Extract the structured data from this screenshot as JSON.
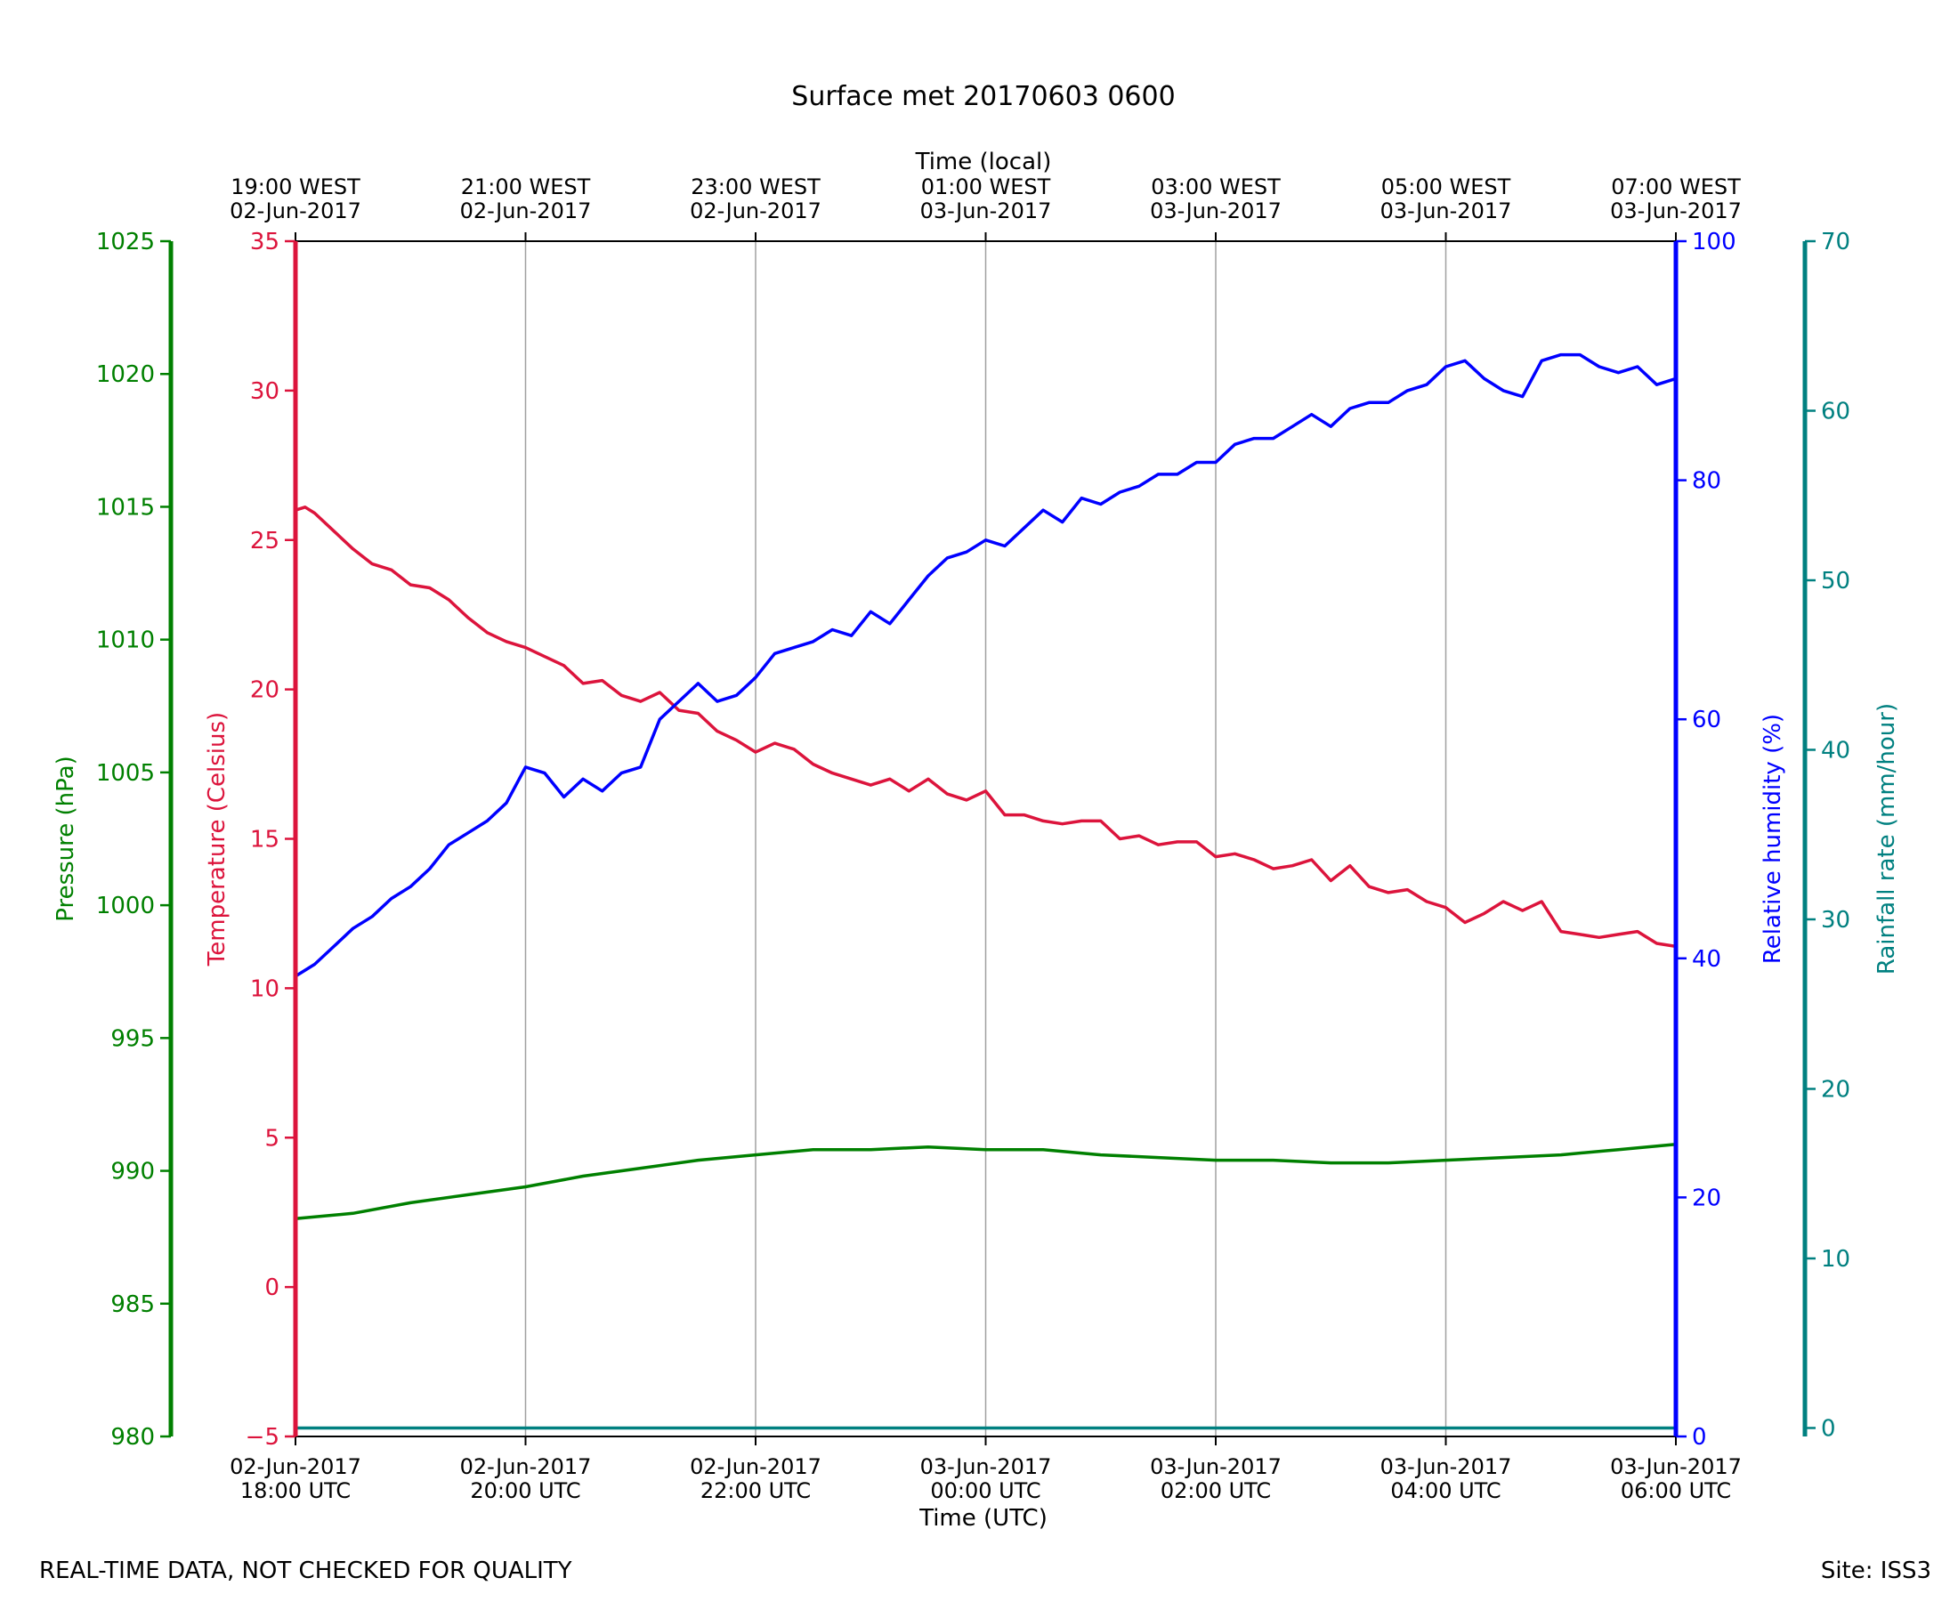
{
  "title": "Surface met 20170603 0600",
  "footer_left": "REAL-TIME DATA, NOT CHECKED FOR QUALITY",
  "footer_right": "Site: ISS3",
  "colors": {
    "temperature": "#dc143c",
    "humidity": "#0000ff",
    "pressure": "#008000",
    "rainfall": "#008080",
    "grid": "#a0a0a0",
    "axis": "#000000"
  },
  "chart_data": {
    "type": "line",
    "grid": "vertical",
    "xlabel": "Time (UTC)",
    "x2label": "Time (local)",
    "xlim": [
      "2017-06-02 18:00",
      "2017-06-03 06:00"
    ],
    "x_ticks_utc": [
      {
        "line1": "02-Jun-2017",
        "line2": "18:00 UTC"
      },
      {
        "line1": "02-Jun-2017",
        "line2": "20:00 UTC"
      },
      {
        "line1": "02-Jun-2017",
        "line2": "22:00 UTC"
      },
      {
        "line1": "03-Jun-2017",
        "line2": "00:00 UTC"
      },
      {
        "line1": "03-Jun-2017",
        "line2": "02:00 UTC"
      },
      {
        "line1": "03-Jun-2017",
        "line2": "04:00 UTC"
      },
      {
        "line1": "03-Jun-2017",
        "line2": "06:00 UTC"
      }
    ],
    "x_ticks_local": [
      {
        "line1": "19:00 WEST",
        "line2": "02-Jun-2017"
      },
      {
        "line1": "21:00 WEST",
        "line2": "02-Jun-2017"
      },
      {
        "line1": "23:00 WEST",
        "line2": "02-Jun-2017"
      },
      {
        "line1": "01:00 WEST",
        "line2": "03-Jun-2017"
      },
      {
        "line1": "03:00 WEST",
        "line2": "03-Jun-2017"
      },
      {
        "line1": "05:00 WEST",
        "line2": "03-Jun-2017"
      },
      {
        "line1": "07:00 WEST",
        "line2": "03-Jun-2017"
      }
    ],
    "axes": {
      "pressure": {
        "label": "Pressure (hPa)",
        "lim": [
          980,
          1025
        ],
        "ticks": [
          "980",
          "985",
          "990",
          "995",
          "1000",
          "1005",
          "1010",
          "1015",
          "1020",
          "1025"
        ]
      },
      "temperature": {
        "label": "Temperature (Celsius)",
        "lim": [
          -5,
          35
        ],
        "ticks": [
          "−5",
          "0",
          "5",
          "10",
          "15",
          "20",
          "25",
          "30",
          "35"
        ]
      },
      "humidity": {
        "label": "Relative humidity (%)",
        "lim": [
          0,
          100
        ],
        "ticks": [
          "0",
          "20",
          "40",
          "60",
          "80",
          "100"
        ]
      },
      "rainfall": {
        "label": "Rainfall rate (mm/hour)",
        "lim": [
          -0.5,
          70
        ],
        "ticks": [
          "0",
          "10",
          "20",
          "30",
          "40",
          "50",
          "60",
          "70"
        ]
      }
    },
    "series": [
      {
        "name": "Temperature (Celsius)",
        "axis": "temperature",
        "x": [
          "2017-06-02 18:00",
          "2017-06-02 18:05",
          "2017-06-02 18:10",
          "2017-06-02 18:20",
          "2017-06-02 18:30",
          "2017-06-02 18:40",
          "2017-06-02 18:50",
          "2017-06-02 19:00",
          "2017-06-02 19:10",
          "2017-06-02 19:20",
          "2017-06-02 19:30",
          "2017-06-02 19:40",
          "2017-06-02 19:50",
          "2017-06-02 20:00",
          "2017-06-02 20:10",
          "2017-06-02 20:20",
          "2017-06-02 20:30",
          "2017-06-02 20:40",
          "2017-06-02 20:50",
          "2017-06-02 21:00",
          "2017-06-02 21:10",
          "2017-06-02 21:20",
          "2017-06-02 21:30",
          "2017-06-02 21:40",
          "2017-06-02 21:50",
          "2017-06-02 22:00",
          "2017-06-02 22:10",
          "2017-06-02 22:20",
          "2017-06-02 22:30",
          "2017-06-02 22:40",
          "2017-06-02 22:50",
          "2017-06-02 23:00",
          "2017-06-02 23:10",
          "2017-06-02 23:20",
          "2017-06-02 23:30",
          "2017-06-02 23:40",
          "2017-06-02 23:50",
          "2017-06-03 00:00",
          "2017-06-03 00:10",
          "2017-06-03 00:20",
          "2017-06-03 00:30",
          "2017-06-03 00:40",
          "2017-06-03 00:50",
          "2017-06-03 01:00",
          "2017-06-03 01:10",
          "2017-06-03 01:20",
          "2017-06-03 01:30",
          "2017-06-03 01:40",
          "2017-06-03 01:50",
          "2017-06-03 02:00",
          "2017-06-03 02:10",
          "2017-06-03 02:20",
          "2017-06-03 02:30",
          "2017-06-03 02:40",
          "2017-06-03 02:50",
          "2017-06-03 03:00",
          "2017-06-03 03:10",
          "2017-06-03 03:20",
          "2017-06-03 03:30",
          "2017-06-03 03:40",
          "2017-06-03 03:50",
          "2017-06-03 04:00",
          "2017-06-03 04:10",
          "2017-06-03 04:20",
          "2017-06-03 04:30",
          "2017-06-03 04:40",
          "2017-06-03 04:50",
          "2017-06-03 05:00",
          "2017-06-03 05:10",
          "2017-06-03 05:20",
          "2017-06-03 05:30",
          "2017-06-03 05:40",
          "2017-06-03 05:50",
          "2017-06-03 06:00"
        ],
        "values": [
          26.0,
          26.1,
          25.9,
          25.3,
          24.7,
          24.2,
          24.0,
          23.5,
          23.4,
          23.0,
          22.4,
          21.9,
          21.6,
          21.4,
          21.1,
          20.8,
          20.2,
          20.3,
          19.8,
          19.6,
          19.9,
          19.3,
          19.2,
          18.6,
          18.3,
          17.9,
          18.2,
          18.0,
          17.5,
          17.2,
          17.0,
          16.8,
          17.0,
          16.6,
          17.0,
          16.5,
          16.3,
          16.6,
          15.8,
          15.8,
          15.6,
          15.5,
          15.6,
          15.6,
          15.0,
          15.1,
          14.8,
          14.9,
          14.9,
          14.4,
          14.5,
          14.3,
          14.0,
          14.1,
          14.3,
          13.6,
          14.1,
          13.4,
          13.2,
          13.3,
          12.9,
          12.7,
          12.2,
          12.5,
          12.9,
          12.6,
          12.9,
          11.9,
          11.8,
          11.7,
          11.8,
          11.9,
          11.5,
          11.4
        ]
      },
      {
        "name": "Relative humidity (%)",
        "axis": "humidity",
        "x": [
          "2017-06-02 18:00",
          "2017-06-02 18:10",
          "2017-06-02 18:20",
          "2017-06-02 18:30",
          "2017-06-02 18:40",
          "2017-06-02 18:50",
          "2017-06-02 19:00",
          "2017-06-02 19:10",
          "2017-06-02 19:20",
          "2017-06-02 19:30",
          "2017-06-02 19:40",
          "2017-06-02 19:50",
          "2017-06-02 20:00",
          "2017-06-02 20:10",
          "2017-06-02 20:20",
          "2017-06-02 20:30",
          "2017-06-02 20:40",
          "2017-06-02 20:50",
          "2017-06-02 21:00",
          "2017-06-02 21:10",
          "2017-06-02 21:20",
          "2017-06-02 21:30",
          "2017-06-02 21:40",
          "2017-06-02 21:50",
          "2017-06-02 22:00",
          "2017-06-02 22:10",
          "2017-06-02 22:20",
          "2017-06-02 22:30",
          "2017-06-02 22:40",
          "2017-06-02 22:50",
          "2017-06-02 23:00",
          "2017-06-02 23:10",
          "2017-06-02 23:20",
          "2017-06-02 23:30",
          "2017-06-02 23:40",
          "2017-06-02 23:50",
          "2017-06-03 00:00",
          "2017-06-03 00:10",
          "2017-06-03 00:20",
          "2017-06-03 00:30",
          "2017-06-03 00:40",
          "2017-06-03 00:50",
          "2017-06-03 01:00",
          "2017-06-03 01:10",
          "2017-06-03 01:20",
          "2017-06-03 01:30",
          "2017-06-03 01:40",
          "2017-06-03 01:50",
          "2017-06-03 02:00",
          "2017-06-03 02:10",
          "2017-06-03 02:20",
          "2017-06-03 02:30",
          "2017-06-03 02:40",
          "2017-06-03 02:50",
          "2017-06-03 03:00",
          "2017-06-03 03:10",
          "2017-06-03 03:20",
          "2017-06-03 03:30",
          "2017-06-03 03:40",
          "2017-06-03 03:50",
          "2017-06-03 04:00",
          "2017-06-03 04:10",
          "2017-06-03 04:20",
          "2017-06-03 04:30",
          "2017-06-03 04:40",
          "2017-06-03 04:50",
          "2017-06-03 05:00",
          "2017-06-03 05:10",
          "2017-06-03 05:20",
          "2017-06-03 05:30",
          "2017-06-03 05:40",
          "2017-06-03 05:50",
          "2017-06-03 06:00"
        ],
        "values": [
          38.5,
          39.5,
          41.0,
          42.5,
          43.5,
          45.0,
          46.0,
          47.5,
          49.5,
          50.5,
          51.5,
          53.0,
          56.0,
          55.5,
          53.5,
          55.0,
          54.0,
          55.5,
          56.0,
          60.0,
          61.5,
          63.0,
          61.5,
          62.0,
          63.5,
          65.5,
          66.0,
          66.5,
          67.5,
          67.0,
          69.0,
          68.0,
          70.0,
          72.0,
          73.5,
          74.0,
          75.0,
          74.5,
          76.0,
          77.5,
          76.5,
          78.5,
          78.0,
          79.0,
          79.5,
          80.5,
          80.5,
          81.5,
          81.5,
          83.0,
          83.5,
          83.5,
          84.5,
          85.5,
          84.5,
          86.0,
          86.5,
          86.5,
          87.5,
          88.0,
          89.5,
          90.0,
          88.5,
          87.5,
          87.0,
          90.0,
          90.5,
          90.5,
          89.5,
          89.0,
          89.5,
          88.0,
          88.5
        ]
      },
      {
        "name": "Pressure (hPa)",
        "axis": "pressure",
        "x": [
          "2017-06-02 18:00",
          "2017-06-02 18:30",
          "2017-06-02 19:00",
          "2017-06-02 19:30",
          "2017-06-02 20:00",
          "2017-06-02 20:30",
          "2017-06-02 21:00",
          "2017-06-02 21:30",
          "2017-06-02 22:00",
          "2017-06-02 22:30",
          "2017-06-02 23:00",
          "2017-06-02 23:30",
          "2017-06-03 00:00",
          "2017-06-03 00:30",
          "2017-06-03 01:00",
          "2017-06-03 01:30",
          "2017-06-03 02:00",
          "2017-06-03 02:30",
          "2017-06-03 03:00",
          "2017-06-03 03:30",
          "2017-06-03 04:00",
          "2017-06-03 04:30",
          "2017-06-03 05:00",
          "2017-06-03 05:30",
          "2017-06-03 06:00"
        ],
        "values": [
          988.2,
          988.4,
          988.8,
          989.1,
          989.4,
          989.8,
          990.1,
          990.4,
          990.6,
          990.8,
          990.8,
          990.9,
          990.8,
          990.8,
          990.6,
          990.5,
          990.4,
          990.4,
          990.3,
          990.3,
          990.4,
          990.5,
          990.6,
          990.8,
          991.0
        ]
      },
      {
        "name": "Rainfall rate (mm/hour)",
        "axis": "rainfall",
        "x": [
          "2017-06-02 18:00",
          "2017-06-03 06:00"
        ],
        "values": [
          0,
          0
        ]
      }
    ]
  }
}
